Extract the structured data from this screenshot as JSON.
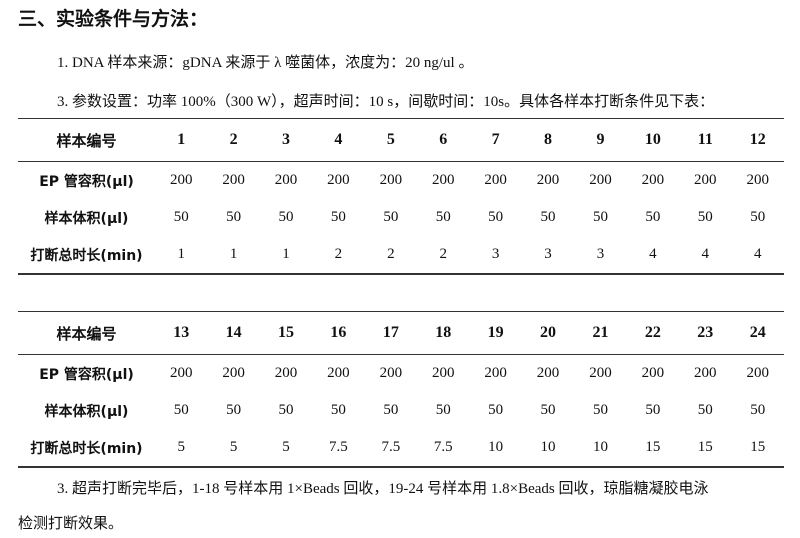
{
  "title": "三、实验条件与方法：",
  "para1": "1. DNA 样本来源：gDNA 来源于 λ 噬菌体，浓度为：20 ng/ul 。",
  "para2": "3. 参数设置：功率 100%（300 W），超声时间：10 s，间歇时间：10s。具体各样本打断条件见下表：",
  "tables": [
    {
      "header_label": "样本编号",
      "ids": [
        "1",
        "2",
        "3",
        "4",
        "5",
        "6",
        "7",
        "8",
        "9",
        "10",
        "11",
        "12"
      ],
      "rows": [
        {
          "label": "EP 管容积(μl)",
          "values": [
            "200",
            "200",
            "200",
            "200",
            "200",
            "200",
            "200",
            "200",
            "200",
            "200",
            "200",
            "200"
          ]
        },
        {
          "label": "样本体积(μl)",
          "values": [
            "50",
            "50",
            "50",
            "50",
            "50",
            "50",
            "50",
            "50",
            "50",
            "50",
            "50",
            "50"
          ]
        },
        {
          "label": "打断总时长(min)",
          "values": [
            "1",
            "1",
            "1",
            "2",
            "2",
            "2",
            "3",
            "3",
            "3",
            "4",
            "4",
            "4"
          ]
        }
      ]
    },
    {
      "header_label": "样本编号",
      "ids": [
        "13",
        "14",
        "15",
        "16",
        "17",
        "18",
        "19",
        "20",
        "21",
        "22",
        "23",
        "24"
      ],
      "rows": [
        {
          "label": "EP 管容积(μl)",
          "values": [
            "200",
            "200",
            "200",
            "200",
            "200",
            "200",
            "200",
            "200",
            "200",
            "200",
            "200",
            "200"
          ]
        },
        {
          "label": "样本体积(μl)",
          "values": [
            "50",
            "50",
            "50",
            "50",
            "50",
            "50",
            "50",
            "50",
            "50",
            "50",
            "50",
            "50"
          ]
        },
        {
          "label": "打断总时长(min)",
          "values": [
            "5",
            "5",
            "5",
            "7.5",
            "7.5",
            "7.5",
            "10",
            "10",
            "10",
            "15",
            "15",
            "15"
          ]
        }
      ]
    }
  ],
  "para3_line1": "3. 超声打断完毕后，1-18 号样本用 1×Beads 回收，19-24 号样本用 1.8×Beads 回收，琼脂糖凝胶电泳",
  "para3_line2": "检测打断效果。"
}
